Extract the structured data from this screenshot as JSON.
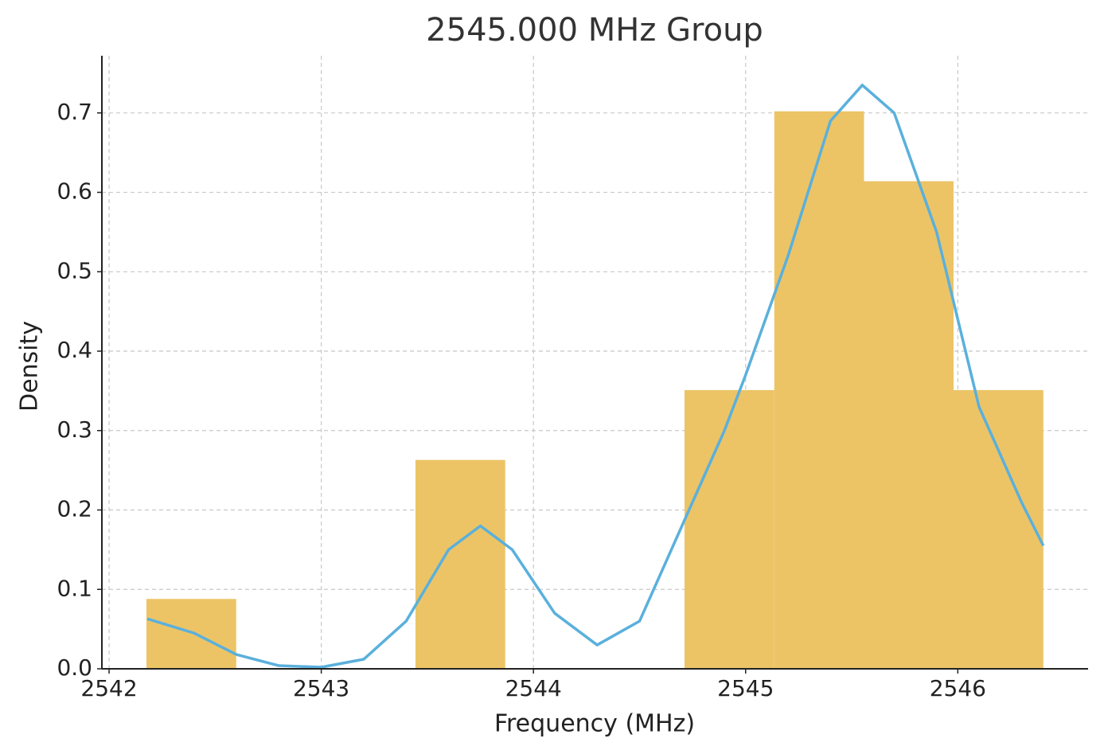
{
  "chart_data": {
    "type": "histogram",
    "title": "2545.000 MHz Group",
    "xlabel": "Frequency (MHz)",
    "ylabel": "Density",
    "bins": [
      2542.176,
      2542.599,
      2543.021,
      2543.444,
      2543.867,
      2544.29,
      2544.712,
      2545.135,
      2545.558,
      2545.98,
      2546.403
    ],
    "values": [
      0.088,
      0,
      0,
      0.263,
      0,
      0,
      0.351,
      0.702,
      0.614,
      0.351
    ],
    "color": "#ecc466",
    "kde": {
      "color": "#5ab0dc",
      "x": [
        2542.18,
        2542.4,
        2542.6,
        2542.8,
        2543.0,
        2543.2,
        2543.4,
        2543.6,
        2543.75,
        2543.9,
        2544.1,
        2544.3,
        2544.5,
        2544.7,
        2544.9,
        2545.0,
        2545.2,
        2545.4,
        2545.55,
        2545.7,
        2545.9,
        2546.1,
        2546.3,
        2546.403
      ],
      "values": [
        0.063,
        0.045,
        0.018,
        0.004,
        0.002,
        0.012,
        0.06,
        0.15,
        0.18,
        0.15,
        0.07,
        0.03,
        0.06,
        0.18,
        0.3,
        0.37,
        0.52,
        0.69,
        0.735,
        0.7,
        0.55,
        0.33,
        0.21,
        0.155
      ]
    },
    "xlim": [
      2541.966,
      2546.614
    ],
    "ylim": [
      0,
      0.772
    ],
    "xticks": [
      2542,
      2543,
      2544,
      2545,
      2546
    ],
    "yticks": [
      {
        "value": 0,
        "label": "0.0"
      },
      0.1,
      0.2,
      0.3,
      0.4,
      0.5,
      0.6,
      0.7
    ],
    "grid": true
  }
}
